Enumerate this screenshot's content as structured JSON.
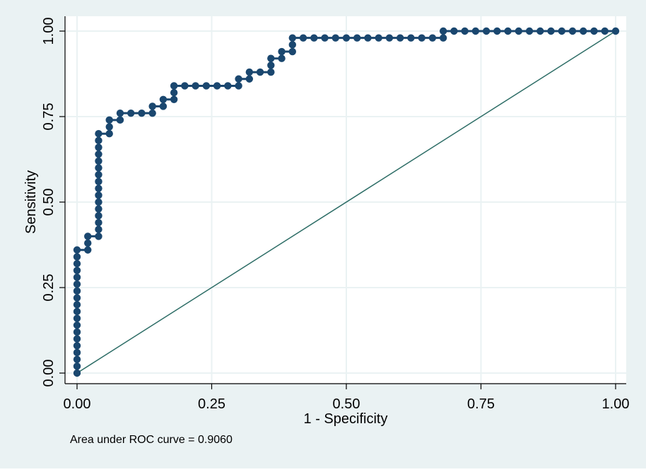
{
  "chart_data": {
    "type": "line",
    "title": "",
    "xlabel": "1 - Specificity",
    "ylabel": "Sensitivity",
    "xlim": [
      0,
      1
    ],
    "ylim": [
      0,
      1
    ],
    "x_ticks": [
      "0.00",
      "0.25",
      "0.50",
      "0.75",
      "1.00"
    ],
    "y_ticks": [
      "0.00",
      "0.25",
      "0.50",
      "0.75",
      "1.00"
    ],
    "x_tick_values": [
      0,
      0.25,
      0.5,
      0.75,
      1
    ],
    "y_tick_values": [
      0,
      0.25,
      0.5,
      0.75,
      1
    ],
    "grid": true,
    "legend": "none",
    "note": "Area under ROC curve = 0.9060",
    "colors": {
      "outer_background": "#eaf2f3",
      "plot_background": "#ffffff",
      "grid": "#eaf2f3",
      "curve": "#1a476f",
      "reference_line": "#2d6d66"
    },
    "series": [
      {
        "points": [
          [
            0,
            0
          ],
          [
            0,
            0.02
          ],
          [
            0,
            0.04
          ],
          [
            0,
            0.06
          ],
          [
            0,
            0.08
          ],
          [
            0,
            0.1
          ],
          [
            0,
            0.12
          ],
          [
            0,
            0.14
          ],
          [
            0,
            0.16
          ],
          [
            0,
            0.18
          ],
          [
            0,
            0.2
          ],
          [
            0,
            0.22
          ],
          [
            0,
            0.24
          ],
          [
            0,
            0.26
          ],
          [
            0,
            0.28
          ],
          [
            0,
            0.3
          ],
          [
            0,
            0.32
          ],
          [
            0,
            0.34
          ],
          [
            0,
            0.36
          ],
          [
            0.02,
            0.36
          ],
          [
            0.02,
            0.38
          ],
          [
            0.02,
            0.4
          ],
          [
            0.04,
            0.4
          ],
          [
            0.04,
            0.42
          ],
          [
            0.04,
            0.44
          ],
          [
            0.04,
            0.46
          ],
          [
            0.04,
            0.48
          ],
          [
            0.04,
            0.5
          ],
          [
            0.04,
            0.52
          ],
          [
            0.04,
            0.54
          ],
          [
            0.04,
            0.56
          ],
          [
            0.04,
            0.58
          ],
          [
            0.04,
            0.6
          ],
          [
            0.04,
            0.62
          ],
          [
            0.04,
            0.64
          ],
          [
            0.04,
            0.66
          ],
          [
            0.04,
            0.68
          ],
          [
            0.04,
            0.7
          ],
          [
            0.06,
            0.7
          ],
          [
            0.06,
            0.72
          ],
          [
            0.06,
            0.74
          ],
          [
            0.08,
            0.74
          ],
          [
            0.08,
            0.76
          ],
          [
            0.1,
            0.76
          ],
          [
            0.12,
            0.76
          ],
          [
            0.14,
            0.76
          ],
          [
            0.14,
            0.78
          ],
          [
            0.16,
            0.78
          ],
          [
            0.16,
            0.8
          ],
          [
            0.18,
            0.8
          ],
          [
            0.18,
            0.82
          ],
          [
            0.18,
            0.84
          ],
          [
            0.2,
            0.84
          ],
          [
            0.22,
            0.84
          ],
          [
            0.24,
            0.84
          ],
          [
            0.26,
            0.84
          ],
          [
            0.28,
            0.84
          ],
          [
            0.3,
            0.84
          ],
          [
            0.3,
            0.86
          ],
          [
            0.32,
            0.86
          ],
          [
            0.32,
            0.88
          ],
          [
            0.34,
            0.88
          ],
          [
            0.36,
            0.88
          ],
          [
            0.36,
            0.9
          ],
          [
            0.36,
            0.92
          ],
          [
            0.38,
            0.92
          ],
          [
            0.38,
            0.94
          ],
          [
            0.4,
            0.94
          ],
          [
            0.4,
            0.96
          ],
          [
            0.4,
            0.98
          ],
          [
            0.42,
            0.98
          ],
          [
            0.44,
            0.98
          ],
          [
            0.46,
            0.98
          ],
          [
            0.48,
            0.98
          ],
          [
            0.5,
            0.98
          ],
          [
            0.52,
            0.98
          ],
          [
            0.54,
            0.98
          ],
          [
            0.56,
            0.98
          ],
          [
            0.58,
            0.98
          ],
          [
            0.6,
            0.98
          ],
          [
            0.62,
            0.98
          ],
          [
            0.64,
            0.98
          ],
          [
            0.66,
            0.98
          ],
          [
            0.68,
            0.98
          ],
          [
            0.68,
            1.0
          ],
          [
            0.7,
            1.0
          ],
          [
            0.72,
            1.0
          ],
          [
            0.74,
            1.0
          ],
          [
            0.76,
            1.0
          ],
          [
            0.78,
            1.0
          ],
          [
            0.8,
            1.0
          ],
          [
            0.82,
            1.0
          ],
          [
            0.84,
            1.0
          ],
          [
            0.86,
            1.0
          ],
          [
            0.88,
            1.0
          ],
          [
            0.9,
            1.0
          ],
          [
            0.92,
            1.0
          ],
          [
            0.94,
            1.0
          ],
          [
            0.96,
            1.0
          ],
          [
            0.98,
            1.0
          ],
          [
            1.0,
            1.0
          ]
        ]
      },
      {
        "points": [
          [
            0,
            0
          ],
          [
            1,
            1
          ]
        ]
      }
    ]
  }
}
